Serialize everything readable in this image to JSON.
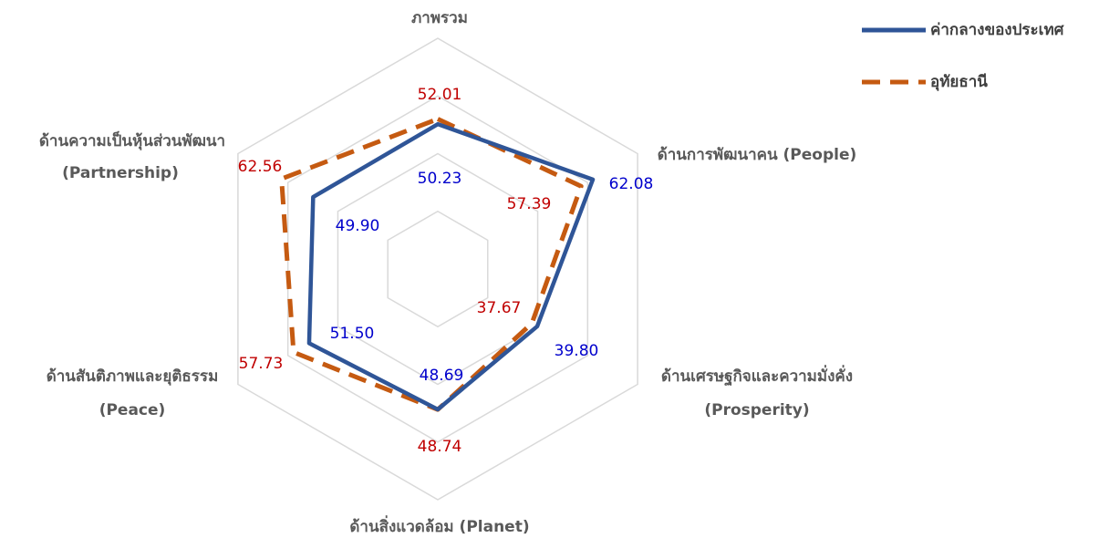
{
  "chart_data": {
    "type": "radar",
    "categories": [
      [
        "ภาพรวม"
      ],
      [
        "ด้านการพัฒนาคน (People)"
      ],
      [
        "ด้านเศรษฐกิจและความมั่งคั่ง",
        "(Prosperity)"
      ],
      [
        "ด้านสิ่งแวดล้อม (Planet)"
      ],
      [
        "ด้านสันติภาพและยุติธรรม",
        "(Peace)"
      ],
      [
        "ด้านความเป็นหุ้นส่วนพัฒนา",
        "(Partnership)"
      ]
    ],
    "series": [
      {
        "name": "อุทัยธานี",
        "color": "#c55a11",
        "dashed": true,
        "label_color": "#c00000",
        "values": [
          52.01,
          57.39,
          37.67,
          48.74,
          57.73,
          62.56
        ],
        "value_labels": [
          "52.01",
          "57.39",
          "37.67",
          "48.74",
          "57.73",
          "62.56"
        ]
      },
      {
        "name": "ค่ากลางของประเทศ",
        "color": "#2f5597",
        "dashed": false,
        "label_color": "#0000cc",
        "values": [
          50.23,
          62.08,
          39.8,
          48.69,
          51.5,
          49.9
        ],
        "value_labels": [
          "50.23",
          "62.08",
          "39.80",
          "48.69",
          "51.50",
          "49.90"
        ]
      }
    ],
    "ylim": [
      0,
      80
    ],
    "yticks": [
      20,
      40,
      60,
      80
    ],
    "grid": true,
    "legend": "top-right"
  }
}
